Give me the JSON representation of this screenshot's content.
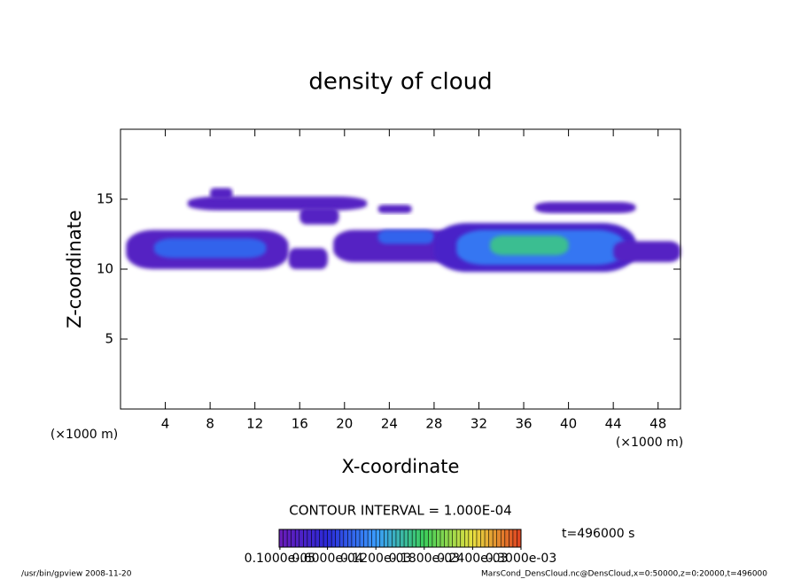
{
  "chart_data": {
    "type": "contour",
    "title": "density of cloud",
    "x_label": "X-coordinate",
    "y_label": "Z-coordinate",
    "x_unit_left": "(×1000 m)",
    "x_unit_right": "(×1000 m)",
    "xlim": [
      0,
      50
    ],
    "ylim": [
      0,
      20
    ],
    "xticks": [
      4,
      8,
      12,
      16,
      20,
      24,
      28,
      32,
      36,
      40,
      44,
      48
    ],
    "yticks": [
      5,
      10,
      15
    ],
    "contour_interval": "CONTOUR INTERVAL = 1.000E-04",
    "time_label": "t=496000 s",
    "colorbar": {
      "clim": [
        0,
        0.0003
      ],
      "colors": [
        "#6a1bb8",
        "#2a2ad8",
        "#3a9cff",
        "#3ccf5a",
        "#e8e040",
        "#e04020"
      ],
      "levels": [
        {
          "value": 1e-06,
          "label": "0.1000e-05"
        },
        {
          "value": 6e-05,
          "label": "0.6000e-04"
        },
        {
          "value": 0.00012,
          "label": "0.1200e-03"
        },
        {
          "value": 0.00018,
          "label": "0.1800e-03"
        },
        {
          "value": 0.00024,
          "label": "0.2400e-03"
        },
        {
          "value": 0.0003,
          "label": "0.3000e-03"
        }
      ]
    },
    "regions": [
      {
        "x0": 0.5,
        "x1": 15,
        "z0": 10,
        "z1": 12.8,
        "value": 2e-05
      },
      {
        "x0": 3,
        "x1": 13,
        "z0": 10.8,
        "z1": 12.2,
        "value": 9e-05
      },
      {
        "x0": 6,
        "x1": 22,
        "z0": 14.2,
        "z1": 15.2,
        "value": 2e-05
      },
      {
        "x0": 8,
        "x1": 10,
        "z0": 15,
        "z1": 15.8,
        "value": 2e-05
      },
      {
        "x0": 16,
        "x1": 19.5,
        "z0": 13.2,
        "z1": 14.4,
        "value": 2e-05
      },
      {
        "x0": 15,
        "x1": 18.5,
        "z0": 10,
        "z1": 11.5,
        "value": 2e-05
      },
      {
        "x0": 19,
        "x1": 30,
        "z0": 10.5,
        "z1": 12.8,
        "value": 2e-05
      },
      {
        "x0": 23,
        "x1": 28,
        "z0": 11.8,
        "z1": 12.8,
        "value": 9e-05
      },
      {
        "x0": 23,
        "x1": 26,
        "z0": 14,
        "z1": 14.6,
        "value": 2e-05
      },
      {
        "x0": 28,
        "x1": 46,
        "z0": 9.8,
        "z1": 13.3,
        "value": 3e-05
      },
      {
        "x0": 30,
        "x1": 45,
        "z0": 10.3,
        "z1": 12.8,
        "value": 0.0001
      },
      {
        "x0": 33,
        "x1": 40,
        "z0": 11,
        "z1": 12.4,
        "value": 0.00016
      },
      {
        "x0": 37,
        "x1": 46,
        "z0": 14,
        "z1": 14.8,
        "value": 2e-05
      },
      {
        "x0": 44,
        "x1": 50,
        "z0": 10.5,
        "z1": 12,
        "value": 2e-05
      }
    ],
    "footer_left": "/usr/bin/gpview  2008-11-20",
    "footer_right": "MarsCond_DensCloud.nc@DensCloud,x=0:50000,z=0:20000,t=496000"
  }
}
